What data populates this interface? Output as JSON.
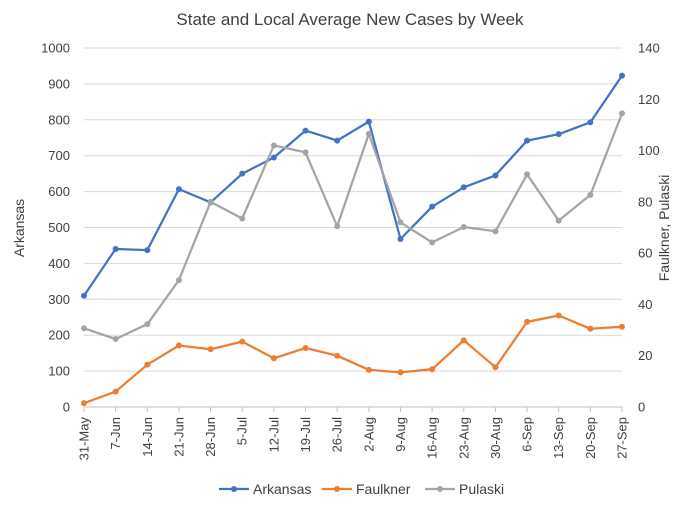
{
  "chart_data": {
    "type": "line",
    "title": "State and Local Average New Cases by Week",
    "xlabel": "",
    "ylabel": "Arkansas",
    "y2label": "Faulkner, Pulaski",
    "categories": [
      "31-May",
      "7-Jun",
      "14-Jun",
      "21-Jun",
      "28-Jun",
      "5-Jul",
      "12-Jul",
      "19-Jul",
      "26-Jul",
      "2-Aug",
      "9-Aug",
      "16-Aug",
      "23-Aug",
      "30-Aug",
      "6-Sep",
      "13-Sep",
      "20-Sep",
      "27-Sep"
    ],
    "ylim": [
      0,
      1000
    ],
    "y_ticks": [
      "0",
      "100",
      "200",
      "300",
      "400",
      "500",
      "600",
      "700",
      "800",
      "900",
      "1000"
    ],
    "y2lim": [
      0,
      140
    ],
    "y2_ticks": [
      "0",
      "20",
      "40",
      "60",
      "80",
      "100",
      "120",
      "140"
    ],
    "grid": "horizontal",
    "legend_position": "bottom",
    "series": [
      {
        "name": "Arkansas",
        "axis": "left",
        "color": "#4472C4",
        "values": [
          310,
          440,
          437,
          607,
          570,
          650,
          695,
          770,
          742,
          795,
          468,
          558,
          612,
          645,
          742,
          760,
          793,
          923
        ]
      },
      {
        "name": "Faulkner",
        "axis": "right",
        "color": "#ED7D31",
        "values": [
          1.5,
          6,
          16.5,
          24,
          22.5,
          25.5,
          19,
          23,
          20,
          14.5,
          13.5,
          14.7,
          26,
          15.5,
          33.2,
          35.7,
          30.5,
          31.3
        ]
      },
      {
        "name": "Pulaski",
        "axis": "right",
        "color": "#A5A5A5",
        "values": [
          30.7,
          26.5,
          32.3,
          49.5,
          80,
          73.5,
          102,
          99.3,
          70.5,
          106.5,
          72,
          64.2,
          70.2,
          68.5,
          90.7,
          72.7,
          82.7,
          114.5
        ]
      }
    ]
  }
}
